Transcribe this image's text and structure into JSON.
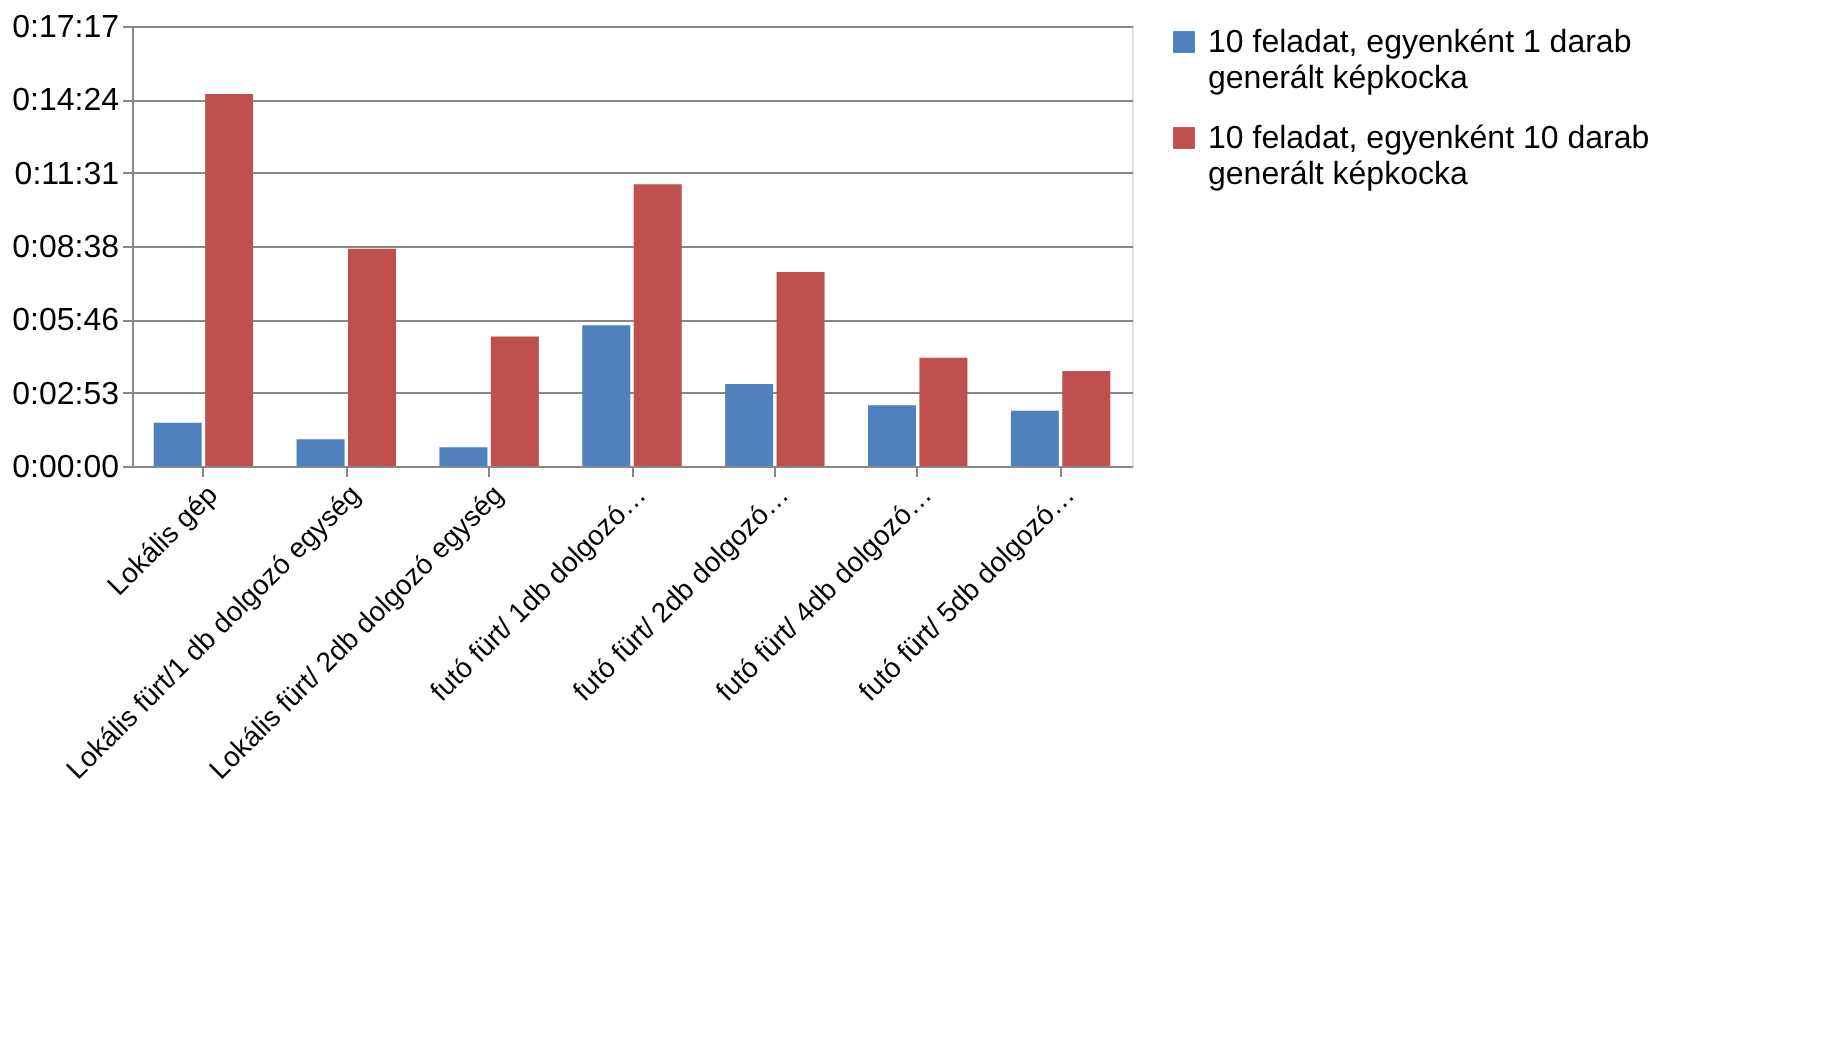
{
  "chart_data": {
    "type": "bar",
    "categories": [
      "Lokális gép",
      "Lokális fürt/1 db dolgozó egység",
      "Lokális fürt/ 2db dolgozó egység",
      "futó fürt/ 1db dolgozó…",
      "futó fürt/ 2db dolgozó…",
      "futó fürt/ 4db dolgozó…",
      "futó fürt/ 5db dolgozó…"
    ],
    "series": [
      {
        "name": "10 feladat, egyenként 1 darab generált képkocka",
        "color": "#4f81bd",
        "values": [
          102,
          63,
          44,
          332,
          193,
          143,
          130
        ]
      },
      {
        "name": "10 feladat, egyenként 10 darab generált képkocka",
        "color": "#c0504d",
        "values": [
          877,
          512,
          305,
          664,
          457,
          255,
          224
        ]
      }
    ],
    "ylim": [
      0,
      1037
    ],
    "yticks": [
      {
        "value": 0,
        "label": "0:00:00"
      },
      {
        "value": 173,
        "label": "0:02:53"
      },
      {
        "value": 346,
        "label": "0:05:46"
      },
      {
        "value": 518,
        "label": "0:08:38"
      },
      {
        "value": 691,
        "label": "0:11:31"
      },
      {
        "value": 864,
        "label": "0:14:24"
      },
      {
        "value": 1037,
        "label": "0:17:17"
      }
    ],
    "grid": "y",
    "legend": "right"
  }
}
